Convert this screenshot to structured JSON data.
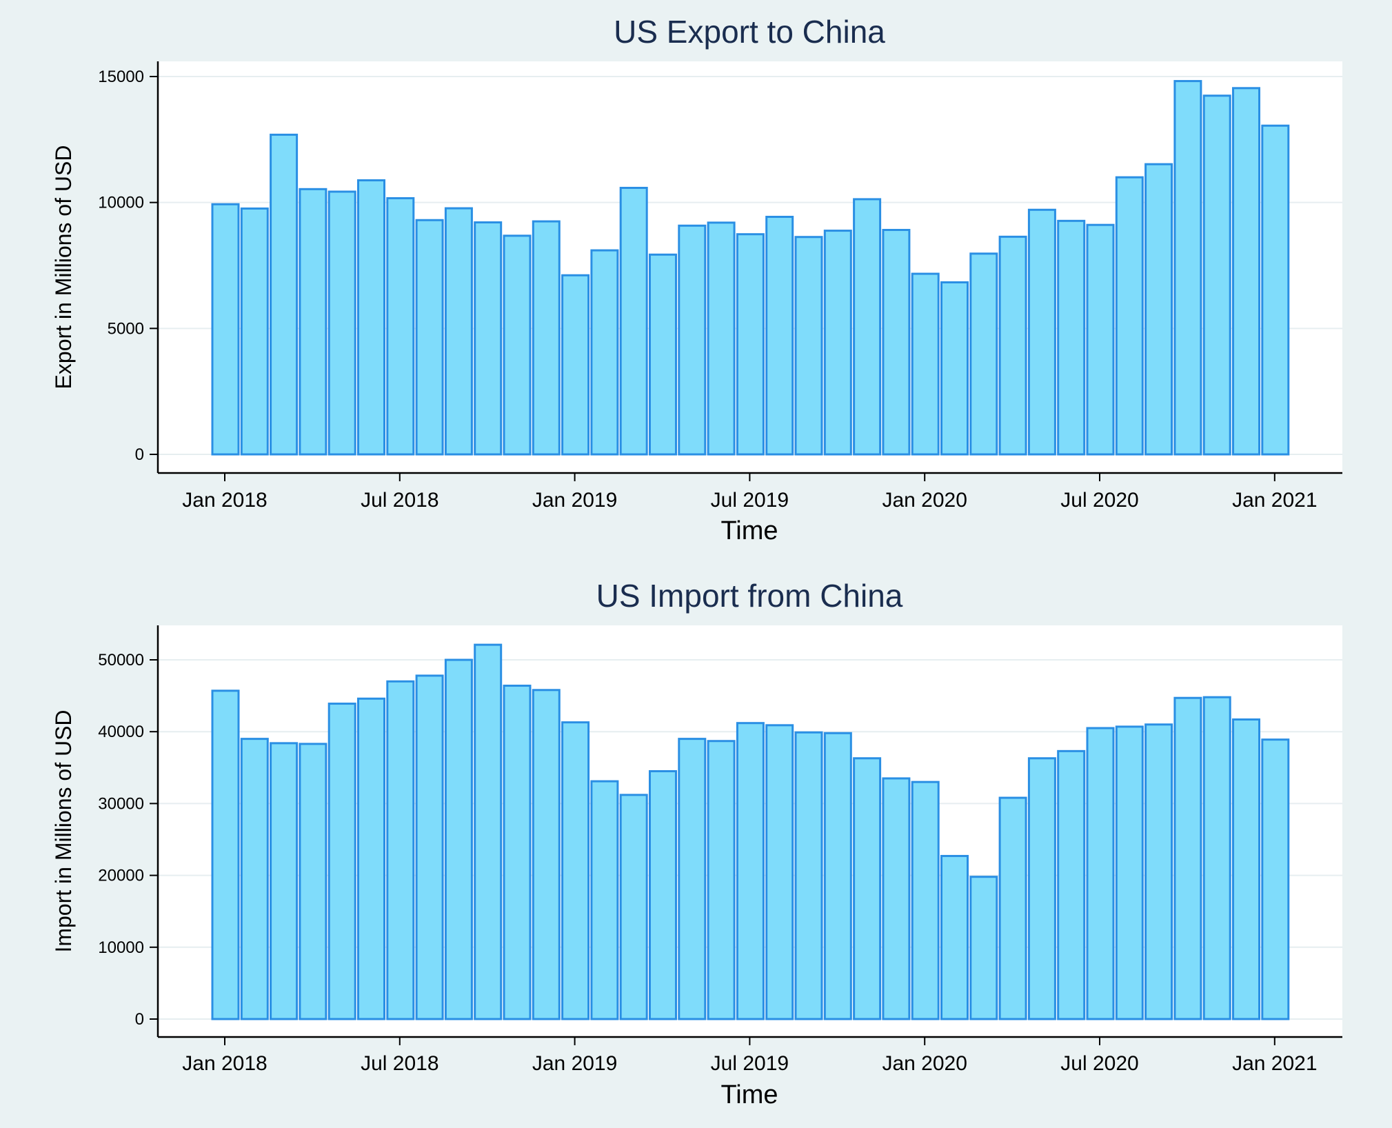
{
  "chart_data": [
    {
      "type": "bar",
      "title": "US Export to China",
      "xlabel": "Time",
      "ylabel": "Export in Millions of USD",
      "ylim": [
        0,
        15500
      ],
      "yticks": [
        0,
        5000,
        10000,
        15000
      ],
      "xticks": [
        "Jan 2018",
        "Jul 2018",
        "Jan 2019",
        "Jul 2019",
        "Jan 2020",
        "Jul 2020",
        "Jan 2021"
      ],
      "grid": true,
      "bar_fill": "#7fdcfb",
      "bar_stroke": "#2a8fe4",
      "categories": [
        "2018-01",
        "2018-02",
        "2018-03",
        "2018-04",
        "2018-05",
        "2018-06",
        "2018-07",
        "2018-08",
        "2018-09",
        "2018-10",
        "2018-11",
        "2018-12",
        "2019-01",
        "2019-02",
        "2019-03",
        "2019-04",
        "2019-05",
        "2019-06",
        "2019-07",
        "2019-08",
        "2019-09",
        "2019-10",
        "2019-11",
        "2019-12",
        "2020-01",
        "2020-02",
        "2020-03",
        "2020-04",
        "2020-05",
        "2020-06",
        "2020-07",
        "2020-08",
        "2020-09",
        "2020-10",
        "2020-11",
        "2020-12",
        "2021-01"
      ],
      "values": [
        9930,
        9760,
        12690,
        10530,
        10430,
        10880,
        10170,
        9300,
        9770,
        9210,
        8680,
        9250,
        7110,
        8100,
        10580,
        7930,
        9080,
        9200,
        8740,
        9430,
        8630,
        8880,
        10130,
        8910,
        7170,
        6830,
        7970,
        8640,
        9710,
        9270,
        9110,
        11000,
        11520,
        14820,
        14240,
        14540,
        13050
      ]
    },
    {
      "type": "bar",
      "title": "US Import from China",
      "xlabel": "Time",
      "ylabel": "Import in Millions of USD",
      "ylim": [
        0,
        54000
      ],
      "yticks": [
        0,
        10000,
        20000,
        30000,
        40000,
        50000
      ],
      "xticks": [
        "Jan 2018",
        "Jul 2018",
        "Jan 2019",
        "Jul 2019",
        "Jan 2020",
        "Jul 2020",
        "Jan 2021"
      ],
      "grid": true,
      "bar_fill": "#7fdcfb",
      "bar_stroke": "#2a8fe4",
      "categories": [
        "2018-01",
        "2018-02",
        "2018-03",
        "2018-04",
        "2018-05",
        "2018-06",
        "2018-07",
        "2018-08",
        "2018-09",
        "2018-10",
        "2018-11",
        "2018-12",
        "2019-01",
        "2019-02",
        "2019-03",
        "2019-04",
        "2019-05",
        "2019-06",
        "2019-07",
        "2019-08",
        "2019-09",
        "2019-10",
        "2019-11",
        "2019-12",
        "2020-01",
        "2020-02",
        "2020-03",
        "2020-04",
        "2020-05",
        "2020-06",
        "2020-07",
        "2020-08",
        "2020-09",
        "2020-10",
        "2020-11",
        "2020-12",
        "2021-01"
      ],
      "values": [
        45700,
        39000,
        38400,
        38300,
        43900,
        44600,
        47000,
        47800,
        50000,
        52100,
        46400,
        45800,
        41300,
        33100,
        31200,
        34500,
        39000,
        38700,
        41200,
        40900,
        39900,
        39800,
        36300,
        33500,
        33000,
        22700,
        19800,
        30800,
        36300,
        37300,
        40500,
        40700,
        41000,
        44700,
        44800,
        41700,
        38900
      ]
    }
  ]
}
